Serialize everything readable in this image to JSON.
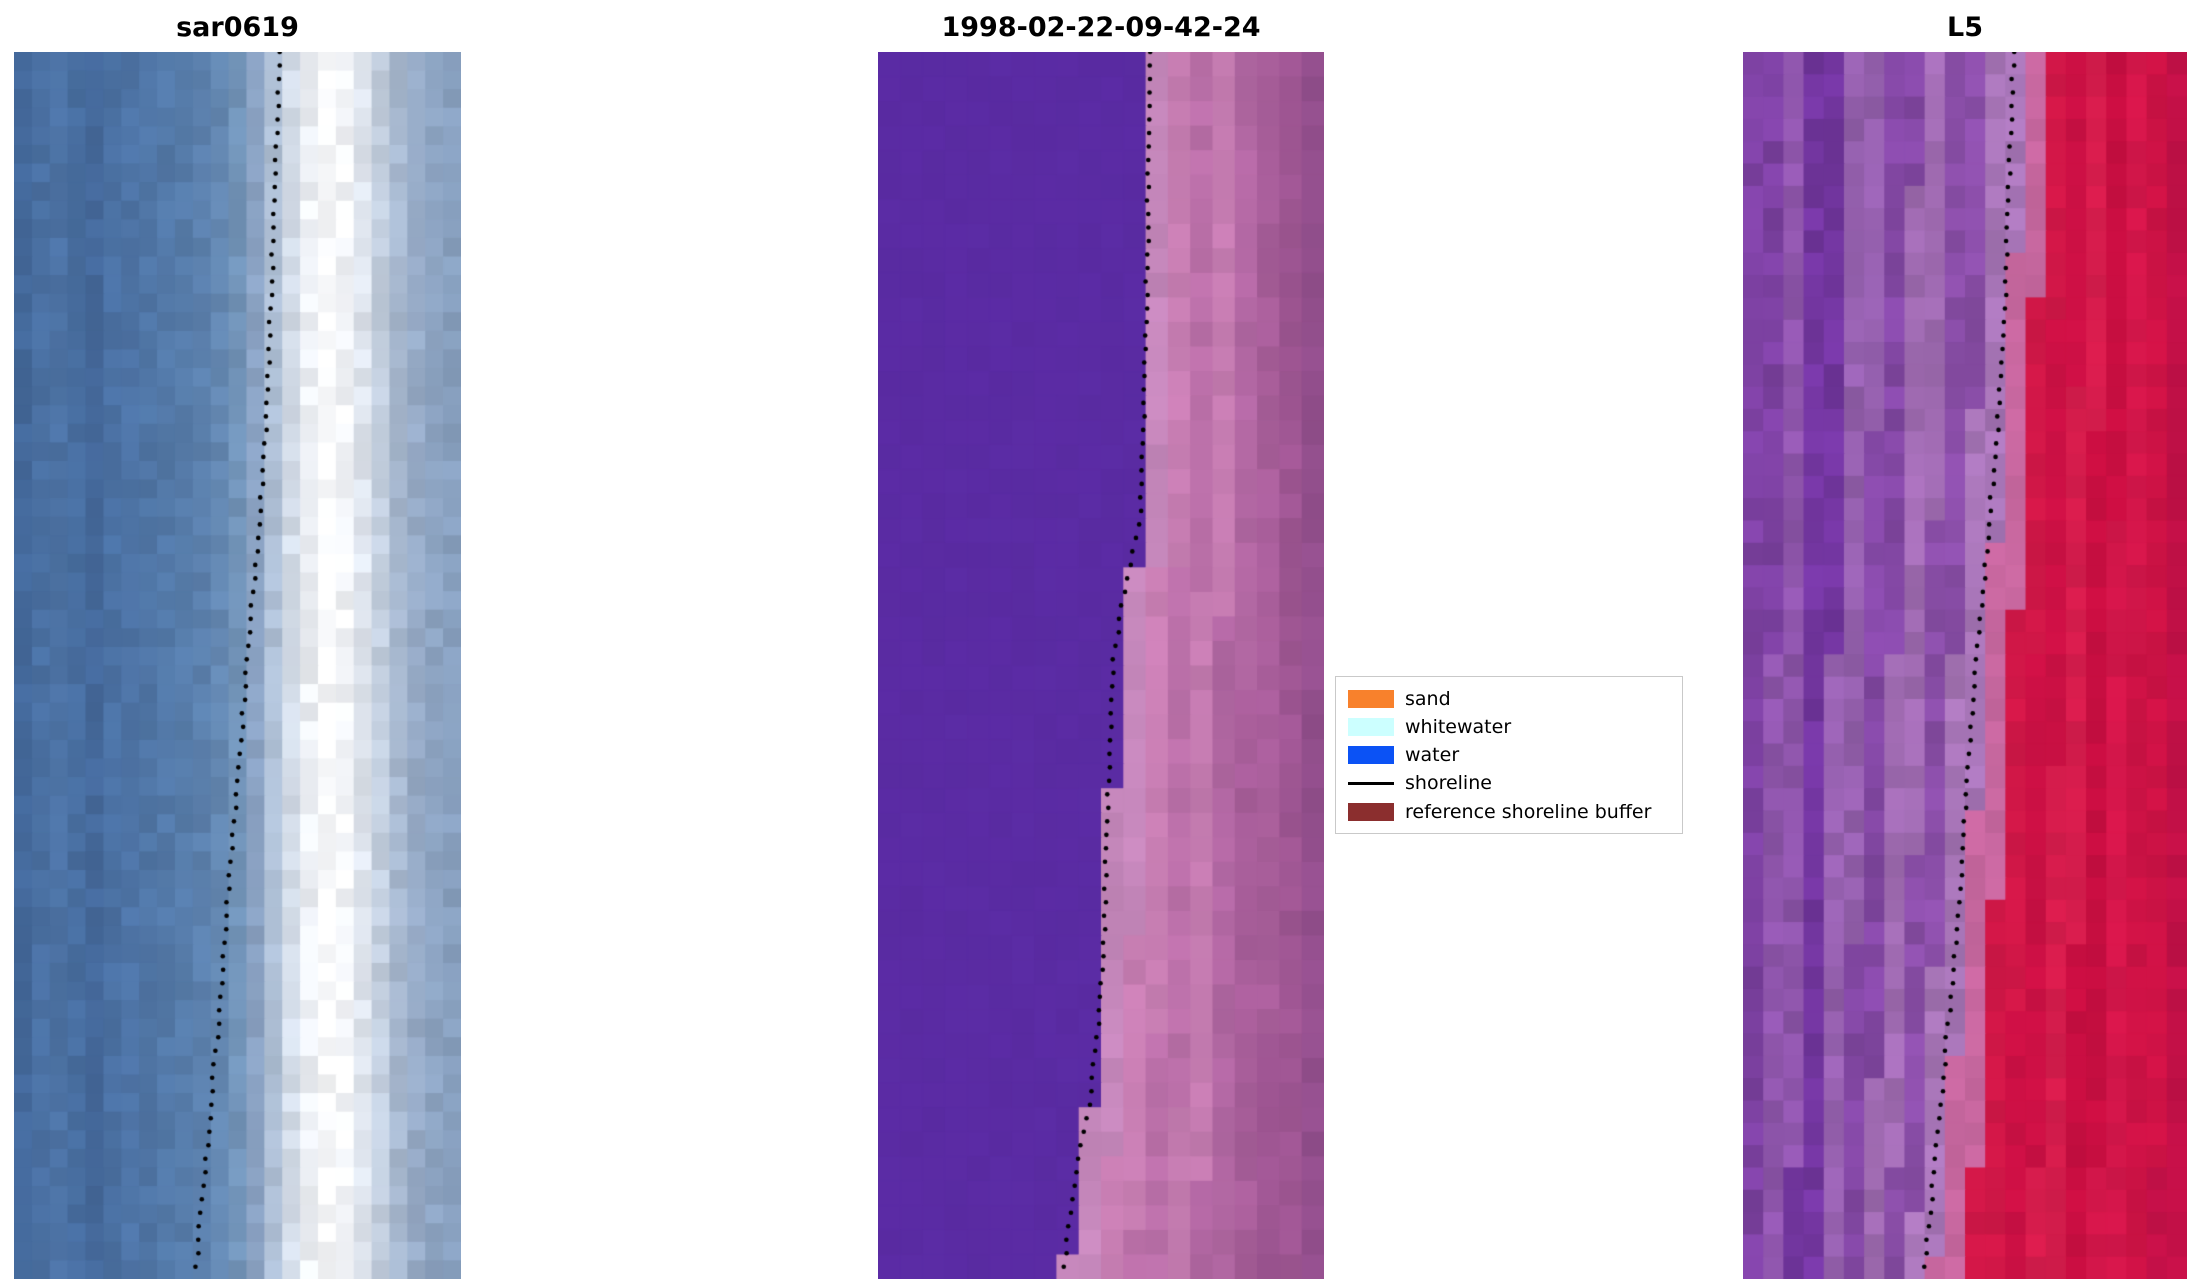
{
  "chart_data": {
    "type": "heatmap",
    "description": "Three-panel shoreline detection figure: SAR image, classified optical image with detected shoreline, and Landsat 5 image, each overlaid with a dotted shoreline.",
    "shoreline_style": {
      "color": "#000000",
      "dot_radius": 2.3,
      "spacing": 0.011,
      "jitter": 0.006
    },
    "panels": [
      {
        "title": "sar0619",
        "mode": "fixed",
        "cols": 25,
        "rows": 66,
        "seed": 11,
        "noise": 0.06,
        "palette": [
          "#44699b",
          "#4a70a2",
          "#4d73a5",
          "#486ea0",
          "#45699b",
          "#4b71a3",
          "#4e74a6",
          "#5076a6",
          "#5379a8",
          "#577dab",
          "#5c81ae",
          "#6488b2",
          "#7294b9",
          "#8ba3c4",
          "#aebfd5",
          "#d4dde9",
          "#edf0f5",
          "#f9fafc",
          "#f3f5f9",
          "#dfe5ee",
          "#c3cfdf",
          "#a7b8cf",
          "#97abc7",
          "#8da4c2",
          "#88a0bf"
        ],
        "shoreline": [
          [
            0,
            0.595
          ],
          [
            0.1,
            0.585
          ],
          [
            0.2,
            0.575
          ],
          [
            0.3,
            0.565
          ],
          [
            0.4,
            0.545
          ],
          [
            0.5,
            0.52
          ],
          [
            0.6,
            0.5
          ],
          [
            0.7,
            0.475
          ],
          [
            0.8,
            0.455
          ],
          [
            0.9,
            0.43
          ],
          [
            1,
            0.405
          ]
        ]
      },
      {
        "title": "1998-02-22-09-42-24",
        "mode": "split",
        "cols": 20,
        "rows": 50,
        "seed": 22,
        "left_palette": [
          "#5a2ba3"
        ],
        "left_noise": 0.015,
        "right_palette": [
          "#c587bb",
          "#c87eb3",
          "#bb70a9",
          "#c47bb0",
          "#b167a2",
          "#a85e9a",
          "#9f5693",
          "#934f8d"
        ],
        "right_noise": 0.05,
        "boundary": [
          [
            0,
            0.62
          ],
          [
            0.1,
            0.615
          ],
          [
            0.2,
            0.61
          ],
          [
            0.3,
            0.605
          ],
          [
            0.38,
            0.595
          ],
          [
            0.44,
            0.56
          ],
          [
            0.5,
            0.535
          ],
          [
            0.56,
            0.53
          ],
          [
            0.64,
            0.52
          ],
          [
            0.72,
            0.515
          ],
          [
            0.8,
            0.5
          ],
          [
            0.86,
            0.48
          ],
          [
            0.92,
            0.45
          ],
          [
            1,
            0.42
          ]
        ],
        "shoreline": [
          [
            0,
            0.612
          ],
          [
            0.1,
            0.607
          ],
          [
            0.2,
            0.602
          ],
          [
            0.3,
            0.597
          ],
          [
            0.38,
            0.587
          ],
          [
            0.44,
            0.552
          ],
          [
            0.5,
            0.527
          ],
          [
            0.56,
            0.522
          ],
          [
            0.64,
            0.512
          ],
          [
            0.72,
            0.507
          ],
          [
            0.8,
            0.492
          ],
          [
            0.86,
            0.472
          ],
          [
            0.92,
            0.442
          ],
          [
            1,
            0.412
          ]
        ]
      },
      {
        "title": "L5",
        "mode": "split",
        "cols": 22,
        "rows": 55,
        "seed": 33,
        "left_palette": [
          "#7d41a2",
          "#8e55ab",
          "#7336a0",
          "#9560ae",
          "#8448a5",
          "#a06bb2",
          "#8a4ea8",
          "#a674b6"
        ],
        "left_noise": 0.09,
        "right_palette": [
          "#c7679f",
          "#d01747",
          "#cb1044",
          "#d51c4c",
          "#c80e41",
          "#d3164a",
          "#cd1245",
          "#c21047"
        ],
        "right_noise": 0.045,
        "boundary": [
          [
            0,
            0.63
          ],
          [
            0.1,
            0.62
          ],
          [
            0.2,
            0.61
          ],
          [
            0.3,
            0.595
          ],
          [
            0.4,
            0.57
          ],
          [
            0.5,
            0.545
          ],
          [
            0.6,
            0.525
          ],
          [
            0.7,
            0.505
          ],
          [
            0.8,
            0.48
          ],
          [
            0.9,
            0.455
          ],
          [
            1,
            0.425
          ]
        ],
        "shoreline": [
          [
            0,
            0.61
          ],
          [
            0.1,
            0.6
          ],
          [
            0.2,
            0.59
          ],
          [
            0.3,
            0.575
          ],
          [
            0.4,
            0.55
          ],
          [
            0.5,
            0.525
          ],
          [
            0.6,
            0.505
          ],
          [
            0.7,
            0.485
          ],
          [
            0.8,
            0.46
          ],
          [
            0.9,
            0.435
          ],
          [
            1,
            0.405
          ]
        ]
      }
    ],
    "legend": {
      "items": [
        {
          "label": "sand",
          "color": "#f8812c",
          "style": "patch"
        },
        {
          "label": "whitewater",
          "color": "#ccffff",
          "style": "patch"
        },
        {
          "label": "water",
          "color": "#0b52f5",
          "style": "patch"
        },
        {
          "label": "shoreline",
          "color": "#000000",
          "style": "line"
        },
        {
          "label": "reference shoreline buffer",
          "color": "#8b2e2e",
          "style": "patch"
        }
      ]
    }
  }
}
